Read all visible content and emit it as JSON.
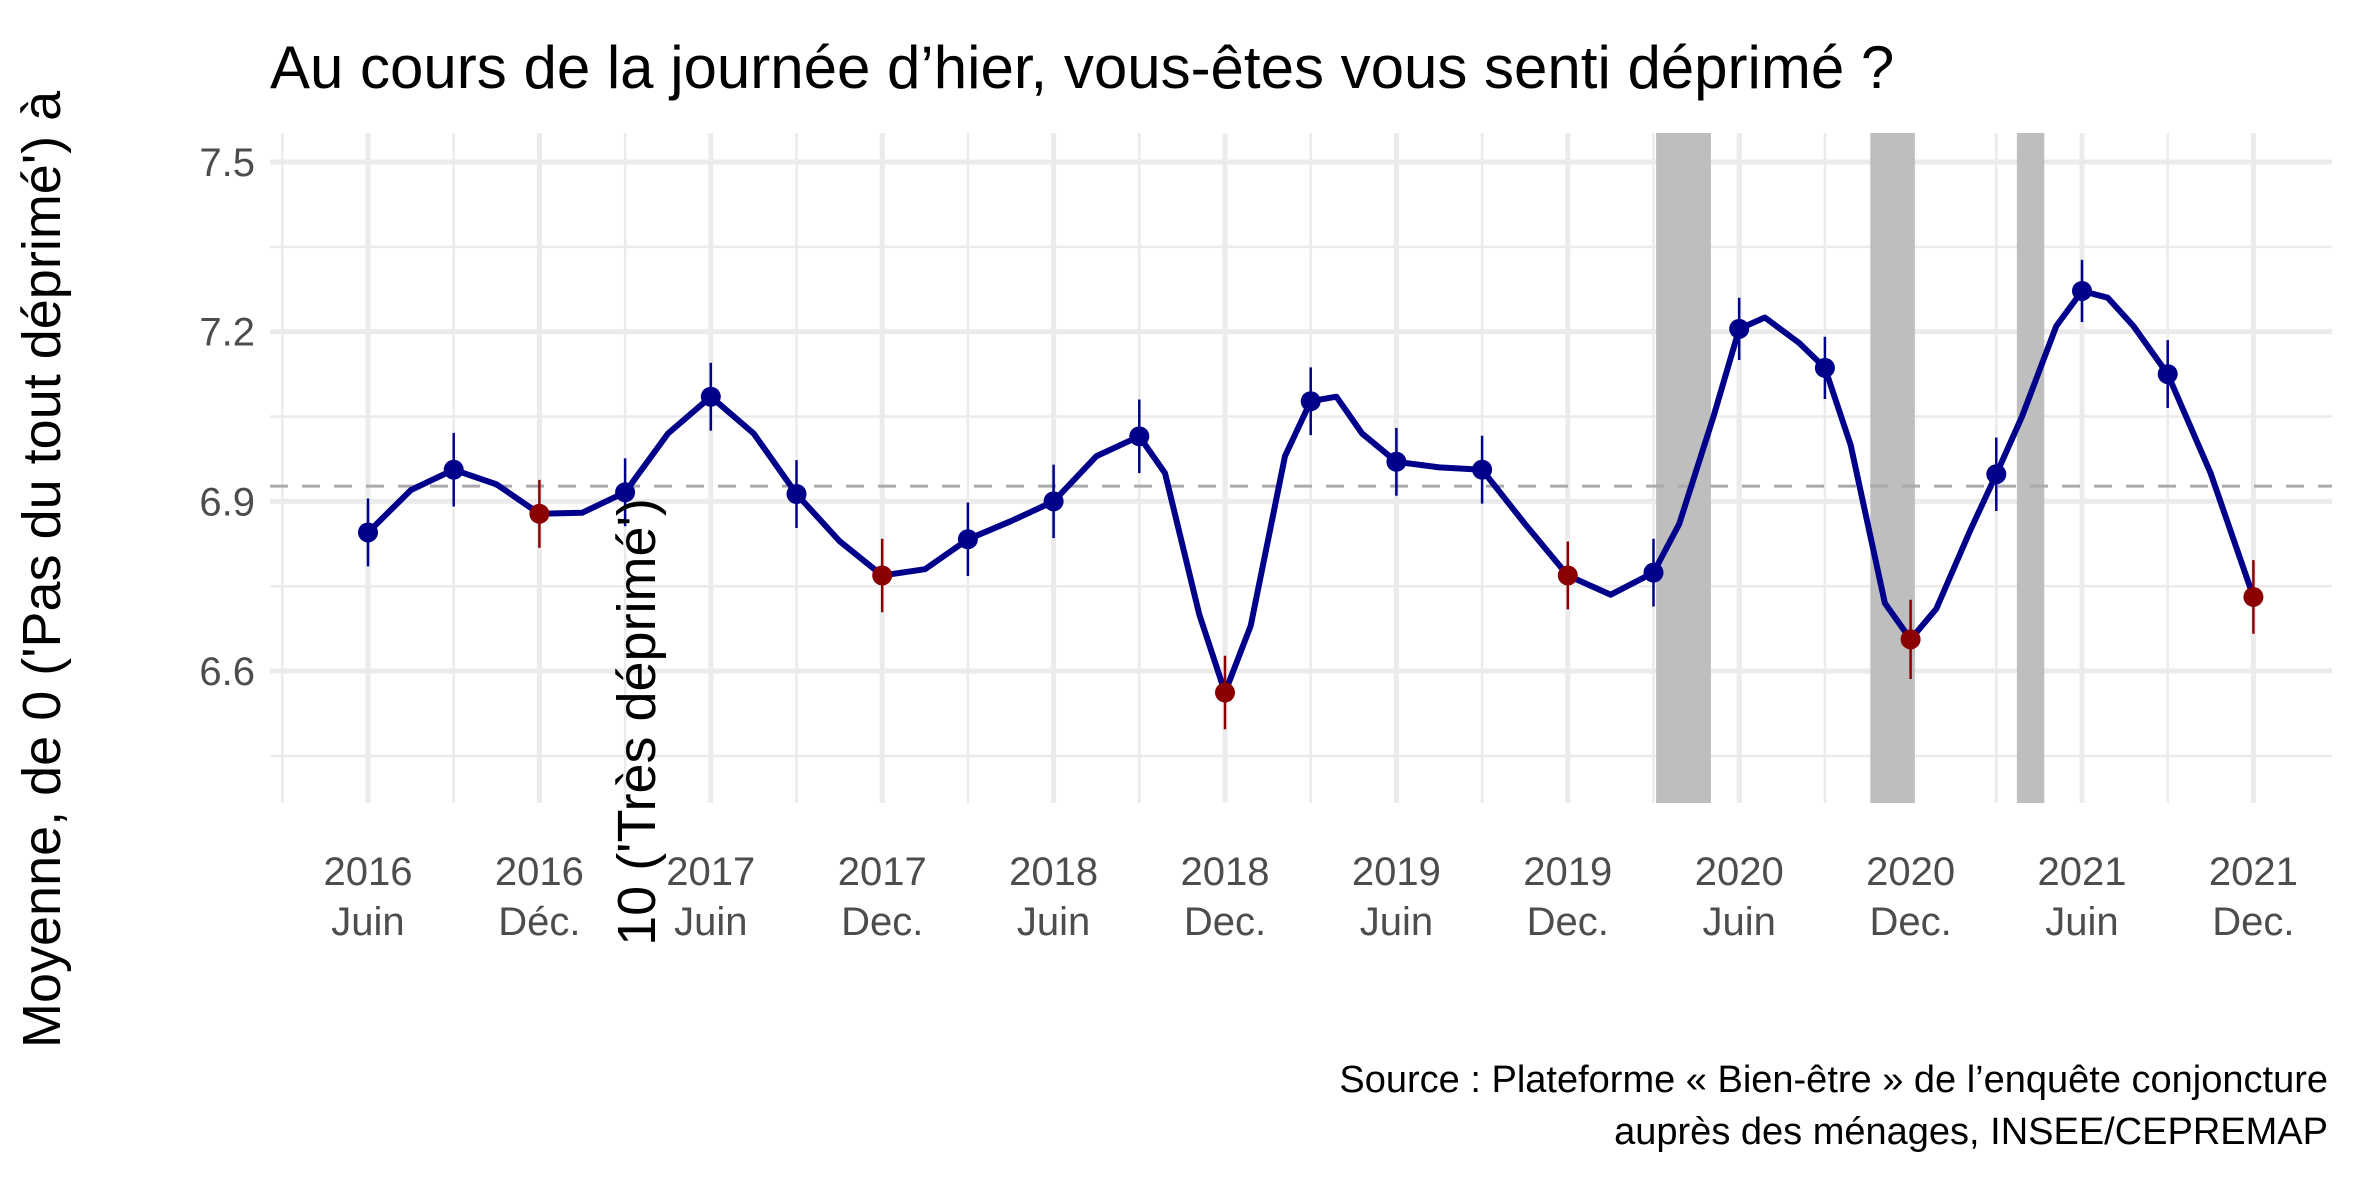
{
  "chart_data": {
    "type": "line",
    "title": "Au cours de la journée d’hier, vous-êtes vous senti déprimé ?",
    "ylabel_line1": "Moyenne, de 0 ('Pas du tout déprimé') à",
    "ylabel_line2": "10 ('Très déprimé')",
    "xlabel": "",
    "caption_line1": "Source : Plateforme « Bien-être » de l’enquête conjoncture",
    "caption_line2": "auprès des ménages, INSEE/CEPREMAP",
    "ylim": [
      6.37,
      7.55
    ],
    "yticks": [
      "6.6",
      "6.9",
      "7.2",
      "7.5"
    ],
    "xtick_labels": [
      [
        "2016",
        "Juin"
      ],
      [
        "2016",
        "Déc."
      ],
      [
        "2017",
        "Juin"
      ],
      [
        "2017",
        "Dec."
      ],
      [
        "2018",
        "Juin"
      ],
      [
        "2018",
        "Dec."
      ],
      [
        "2019",
        "Juin"
      ],
      [
        "2019",
        "Dec."
      ],
      [
        "2020",
        "Juin"
      ],
      [
        "2020",
        "Dec."
      ],
      [
        "2021",
        "Juin"
      ],
      [
        "2021",
        "Dec."
      ]
    ],
    "reference_line": 6.927,
    "x_unit": "quarter index starting June 2016",
    "points": [
      {
        "x": 0,
        "y": 6.845,
        "ci": 0.06,
        "december": false
      },
      {
        "x": 1,
        "y": 6.956,
        "ci": 0.065,
        "december": false
      },
      {
        "x": 2,
        "y": 6.878,
        "ci": 0.06,
        "december": true
      },
      {
        "x": 3,
        "y": 6.916,
        "ci": 0.06,
        "december": false
      },
      {
        "x": 4,
        "y": 7.085,
        "ci": 0.06,
        "december": false
      },
      {
        "x": 5,
        "y": 6.913,
        "ci": 0.06,
        "december": false
      },
      {
        "x": 6,
        "y": 6.769,
        "ci": 0.065,
        "december": true
      },
      {
        "x": 7,
        "y": 6.833,
        "ci": 0.065,
        "december": false
      },
      {
        "x": 8,
        "y": 6.9,
        "ci": 0.065,
        "december": false
      },
      {
        "x": 9,
        "y": 7.015,
        "ci": 0.065,
        "december": false
      },
      {
        "x": 10,
        "y": 6.562,
        "ci": 0.065,
        "december": true
      },
      {
        "x": 11,
        "y": 7.077,
        "ci": 0.06,
        "december": false
      },
      {
        "x": 12,
        "y": 6.97,
        "ci": 0.06,
        "december": false
      },
      {
        "x": 13,
        "y": 6.956,
        "ci": 0.06,
        "december": false
      },
      {
        "x": 14,
        "y": 6.769,
        "ci": 0.06,
        "december": true
      },
      {
        "x": 15,
        "y": 6.774,
        "ci": 0.06,
        "december": false
      },
      {
        "x": 16,
        "y": 7.205,
        "ci": 0.055,
        "december": false
      },
      {
        "x": 17,
        "y": 7.136,
        "ci": 0.055,
        "december": false
      },
      {
        "x": 18,
        "y": 6.656,
        "ci": 0.07,
        "december": true
      },
      {
        "x": 19,
        "y": 6.948,
        "ci": 0.065,
        "december": false
      },
      {
        "x": 20,
        "y": 7.272,
        "ci": 0.055,
        "december": false
      },
      {
        "x": 21,
        "y": 7.125,
        "ci": 0.06,
        "december": false
      },
      {
        "x": 22,
        "y": 6.731,
        "ci": 0.065,
        "december": true
      }
    ],
    "curve": [
      [
        0,
        6.845
      ],
      [
        0.5,
        6.92
      ],
      [
        1,
        6.956
      ],
      [
        1.5,
        6.93
      ],
      [
        2,
        6.878
      ],
      [
        2.5,
        6.88
      ],
      [
        3,
        6.916
      ],
      [
        3.5,
        7.02
      ],
      [
        4,
        7.085
      ],
      [
        4.5,
        7.02
      ],
      [
        5,
        6.913
      ],
      [
        5.5,
        6.83
      ],
      [
        6,
        6.769
      ],
      [
        6.5,
        6.78
      ],
      [
        7,
        6.833
      ],
      [
        7.5,
        6.865
      ],
      [
        8,
        6.9
      ],
      [
        8.5,
        6.98
      ],
      [
        9,
        7.015
      ],
      [
        9.3,
        6.95
      ],
      [
        9.7,
        6.7
      ],
      [
        10,
        6.562
      ],
      [
        10.3,
        6.68
      ],
      [
        10.7,
        6.98
      ],
      [
        11,
        7.077
      ],
      [
        11.3,
        7.085
      ],
      [
        11.6,
        7.02
      ],
      [
        12,
        6.97
      ],
      [
        12.5,
        6.96
      ],
      [
        13,
        6.956
      ],
      [
        13.5,
        6.86
      ],
      [
        14,
        6.769
      ],
      [
        14.5,
        6.735
      ],
      [
        15,
        6.774
      ],
      [
        15.3,
        6.86
      ],
      [
        15.7,
        7.05
      ],
      [
        16,
        7.205
      ],
      [
        16.3,
        7.225
      ],
      [
        16.7,
        7.18
      ],
      [
        17,
        7.136
      ],
      [
        17.3,
        7.0
      ],
      [
        17.7,
        6.72
      ],
      [
        18,
        6.656
      ],
      [
        18.3,
        6.71
      ],
      [
        18.7,
        6.85
      ],
      [
        19,
        6.948
      ],
      [
        19.3,
        7.05
      ],
      [
        19.7,
        7.21
      ],
      [
        20,
        7.272
      ],
      [
        20.3,
        7.26
      ],
      [
        20.6,
        7.21
      ],
      [
        21,
        7.125
      ],
      [
        21.5,
        6.95
      ],
      [
        22,
        6.731
      ]
    ],
    "shaded_periods": [
      {
        "start": 15.03,
        "end": 15.67
      },
      {
        "start": 17.53,
        "end": 18.05
      },
      {
        "start": 19.24,
        "end": 19.56
      }
    ],
    "colors": {
      "line": "#00008b",
      "december": "#8b0000",
      "band": "#bebebe",
      "grid": "#ebebeb",
      "ref": "#aaaaaa"
    }
  }
}
